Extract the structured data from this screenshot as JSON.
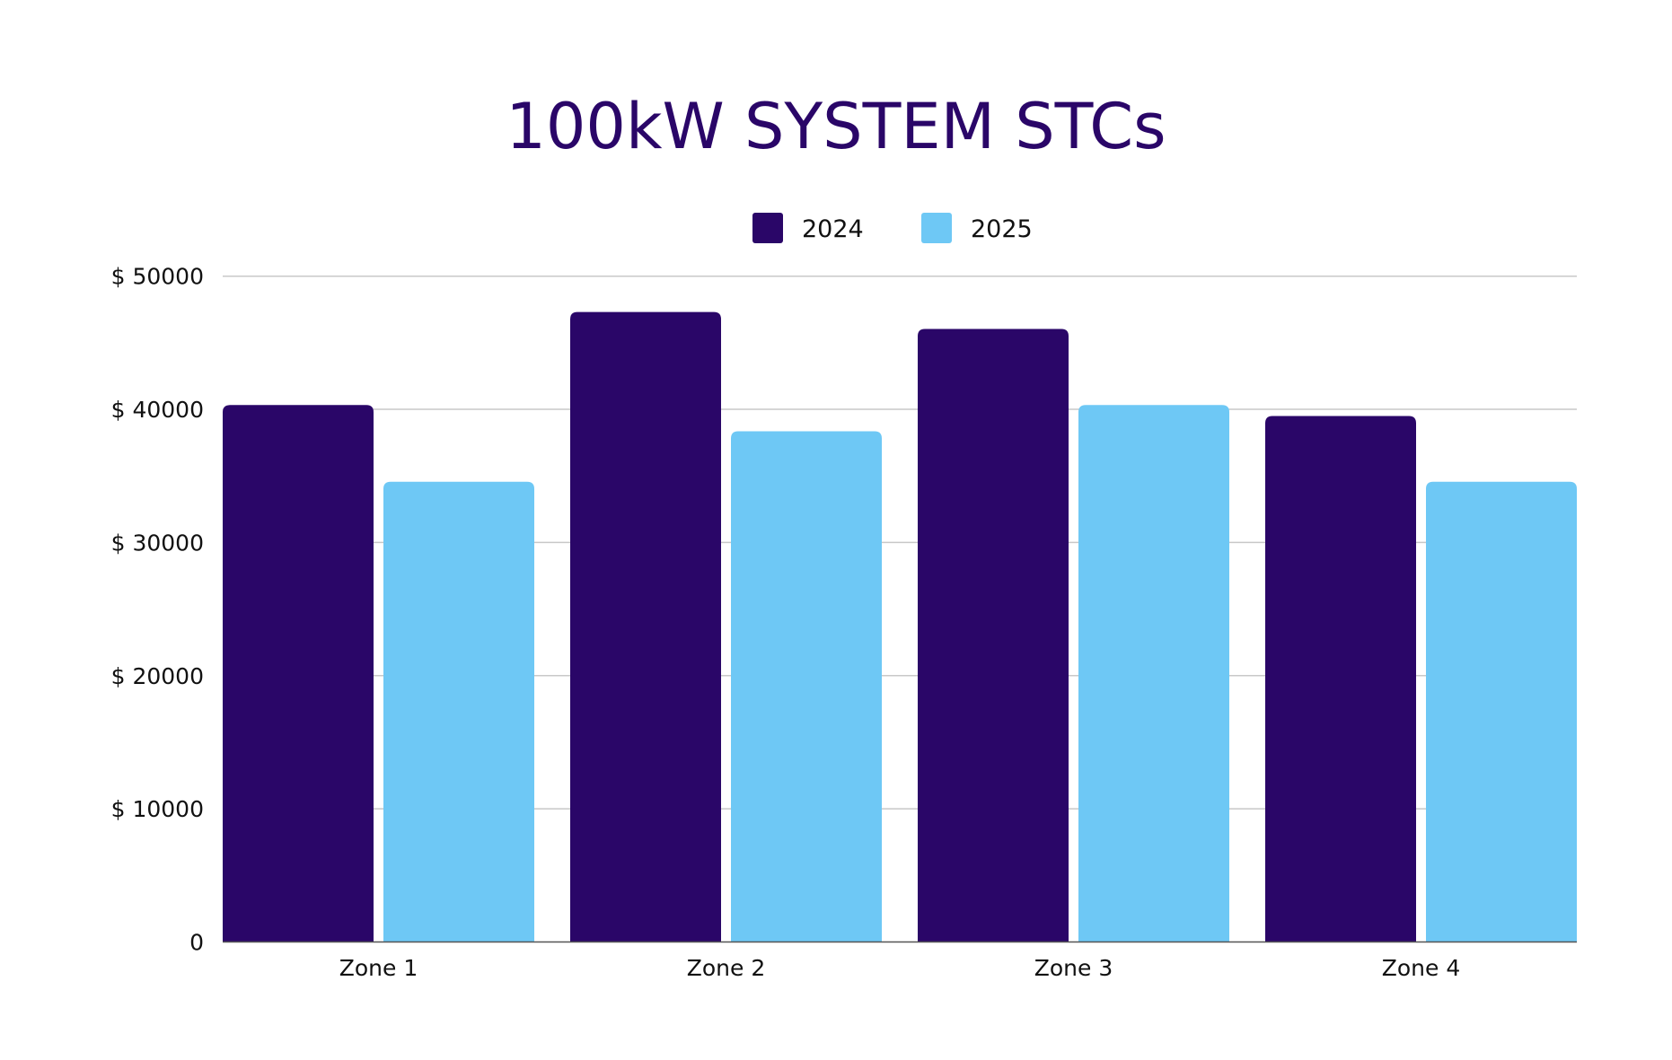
{
  "chart_data": {
    "type": "bar",
    "title": "100kW SYSTEM STCs",
    "xlabel": "",
    "ylabel": "",
    "categories": [
      "Zone 1",
      "Zone 2",
      "Zone 3",
      "Zone 4"
    ],
    "series": [
      {
        "name": "2024",
        "color": "#2a0668",
        "values": [
          40320,
          47310,
          46040,
          39500
        ]
      },
      {
        "name": "2025",
        "color": "#6ec8f5",
        "values": [
          34560,
          38350,
          40320,
          34560
        ]
      }
    ],
    "ylim": [
      0,
      50000
    ],
    "yticks": [
      0,
      10000,
      20000,
      30000,
      40000,
      50000
    ],
    "ytick_labels": [
      "0",
      "$ 10000",
      "$ 20000",
      "$ 30000",
      "$ 40000",
      "$ 50000"
    ],
    "grid": true,
    "legend_position": "top-center",
    "title_color": "#2a0668"
  }
}
